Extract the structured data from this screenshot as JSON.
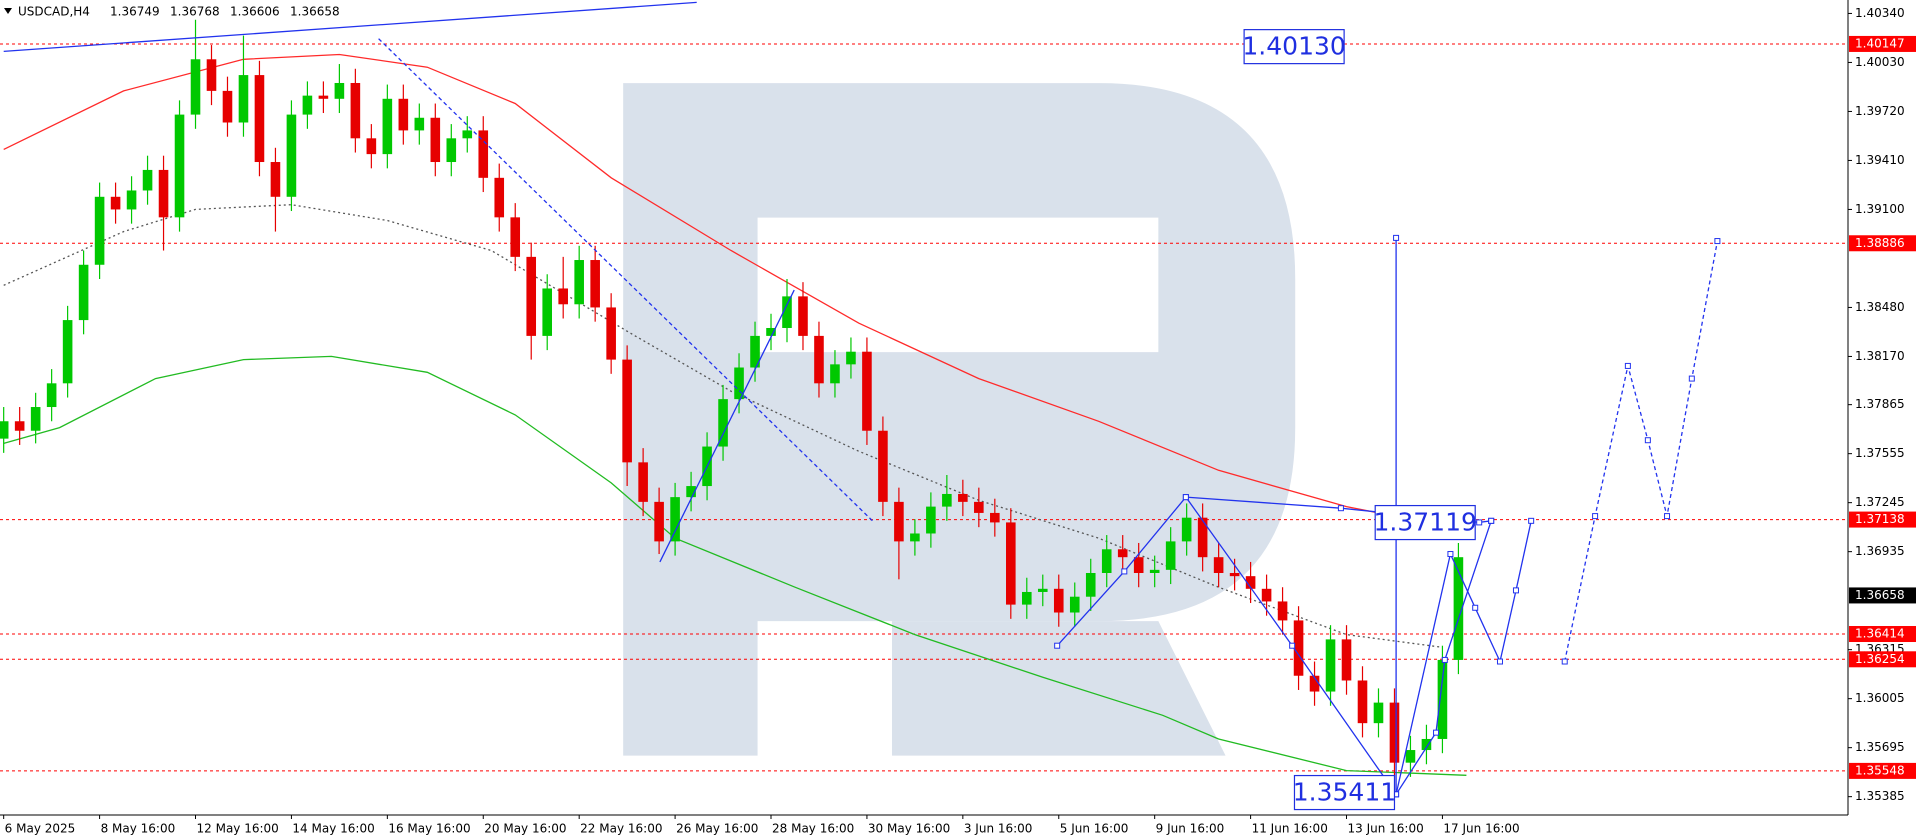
{
  "header": {
    "symbol": "USDCAD,H4",
    "values": [
      1.36749,
      1.36768,
      1.36606,
      1.36658
    ]
  },
  "chart_data": {
    "type": "candlestick",
    "x": [
      0,
      2,
      4,
      6,
      8,
      10,
      12,
      14,
      16,
      18,
      20,
      22,
      24,
      26,
      28,
      30,
      32,
      34,
      36,
      38,
      40,
      42,
      44,
      46,
      48,
      50,
      52,
      54,
      56,
      58,
      60,
      62,
      64,
      66,
      68,
      70,
      72,
      74,
      76,
      78,
      80,
      82,
      84,
      86,
      88,
      90,
      92,
      94,
      96,
      98,
      100,
      102,
      104,
      106,
      108,
      110,
      112,
      114,
      116,
      118,
      120,
      122,
      124,
      126,
      128,
      130,
      132,
      134,
      136,
      138,
      140,
      142,
      144,
      146,
      148,
      150,
      152,
      154,
      156,
      158,
      160,
      162,
      164,
      166,
      168,
      170,
      172,
      174,
      176,
      178,
      180,
      182
    ],
    "open": [
      1.3765,
      1.3776,
      1.377,
      1.3785,
      1.38,
      1.384,
      1.3875,
      1.3918,
      1.391,
      1.3922,
      1.3935,
      1.3905,
      1.397,
      1.4005,
      1.3985,
      1.3965,
      1.3995,
      1.394,
      1.3918,
      1.397,
      1.3982,
      1.398,
      1.399,
      1.3955,
      1.3945,
      1.398,
      1.396,
      1.3968,
      1.394,
      1.3955,
      1.396,
      1.393,
      1.3905,
      1.388,
      1.383,
      1.386,
      1.385,
      1.3878,
      1.3848,
      1.3815,
      1.375,
      1.3725,
      1.37,
      1.3728,
      1.3735,
      1.376,
      1.379,
      1.381,
      1.383,
      1.3835,
      1.3855,
      1.383,
      1.38,
      1.3812,
      1.382,
      1.377,
      1.3725,
      1.37,
      1.3705,
      1.3722,
      1.373,
      1.3725,
      1.3718,
      1.3712,
      1.366,
      1.3668,
      1.367,
      1.3655,
      1.3665,
      1.368,
      1.3695,
      1.369,
      1.368,
      1.3682,
      1.37,
      1.3715,
      1.369,
      1.368,
      1.3678,
      1.367,
      1.3662,
      1.365,
      1.3615,
      1.3605,
      1.3638,
      1.3612,
      1.3585,
      1.3598,
      1.356,
      1.3568,
      1.3575,
      1.3625
    ],
    "high": [
      1.3785,
      1.3785,
      1.3794,
      1.3809,
      1.3849,
      1.3884,
      1.3927,
      1.3927,
      1.3931,
      1.3944,
      1.3944,
      1.3979,
      1.403,
      1.4014,
      1.3994,
      1.402,
      1.4004,
      1.3949,
      1.3979,
      1.3991,
      1.3991,
      1.4002,
      1.3999,
      1.3964,
      1.3989,
      1.3989,
      1.3977,
      1.3977,
      1.3964,
      1.3969,
      1.3969,
      1.3939,
      1.3914,
      1.3889,
      1.3869,
      1.388,
      1.3887,
      1.3887,
      1.3857,
      1.3824,
      1.3759,
      1.3734,
      1.3737,
      1.3744,
      1.3769,
      1.3799,
      1.3819,
      1.3839,
      1.3844,
      1.3866,
      1.3864,
      1.3839,
      1.3821,
      1.3829,
      1.3829,
      1.3779,
      1.3734,
      1.3714,
      1.3731,
      1.3742,
      1.3739,
      1.3734,
      1.3727,
      1.3721,
      1.3677,
      1.3679,
      1.3679,
      1.3674,
      1.3689,
      1.3704,
      1.3704,
      1.3699,
      1.3691,
      1.3709,
      1.3724,
      1.3724,
      1.3699,
      1.3689,
      1.3687,
      1.3679,
      1.3671,
      1.3659,
      1.3624,
      1.3647,
      1.3647,
      1.3621,
      1.3607,
      1.3607,
      1.3577,
      1.3584,
      1.3634,
      1.3699
    ],
    "low": [
      1.3756,
      1.3761,
      1.3762,
      1.3776,
      1.3791,
      1.3831,
      1.3866,
      1.3901,
      1.3901,
      1.3913,
      1.3884,
      1.3896,
      1.3961,
      1.3976,
      1.3956,
      1.3956,
      1.3931,
      1.3896,
      1.3909,
      1.3961,
      1.3971,
      1.3971,
      1.3946,
      1.3936,
      1.3936,
      1.3951,
      1.3951,
      1.3931,
      1.3931,
      1.3946,
      1.3921,
      1.3896,
      1.3871,
      1.3815,
      1.3821,
      1.3841,
      1.3841,
      1.3839,
      1.3806,
      1.3735,
      1.3716,
      1.3692,
      1.3691,
      1.3719,
      1.3726,
      1.3751,
      1.3781,
      1.3801,
      1.3821,
      1.3826,
      1.3821,
      1.3791,
      1.3791,
      1.3803,
      1.3761,
      1.3716,
      1.3676,
      1.3691,
      1.3696,
      1.3713,
      1.3716,
      1.3709,
      1.3703,
      1.3651,
      1.3651,
      1.3659,
      1.3646,
      1.3646,
      1.3656,
      1.3671,
      1.3681,
      1.3671,
      1.3671,
      1.3673,
      1.3691,
      1.3681,
      1.3671,
      1.3669,
      1.3661,
      1.3653,
      1.3641,
      1.3606,
      1.3596,
      1.3596,
      1.3603,
      1.3576,
      1.3576,
      1.3541,
      1.3551,
      1.3559,
      1.3566,
      1.3616
    ],
    "close": [
      1.3776,
      1.377,
      1.3785,
      1.38,
      1.384,
      1.3875,
      1.3918,
      1.391,
      1.3922,
      1.3935,
      1.3905,
      1.397,
      1.4005,
      1.3985,
      1.3965,
      1.3995,
      1.394,
      1.3918,
      1.397,
      1.3982,
      1.398,
      1.399,
      1.3955,
      1.3945,
      1.398,
      1.396,
      1.3968,
      1.394,
      1.3955,
      1.396,
      1.393,
      1.3905,
      1.388,
      1.383,
      1.386,
      1.385,
      1.3878,
      1.3848,
      1.3815,
      1.375,
      1.3725,
      1.37,
      1.3728,
      1.3735,
      1.376,
      1.379,
      1.381,
      1.383,
      1.3835,
      1.3855,
      1.383,
      1.38,
      1.3812,
      1.382,
      1.377,
      1.3725,
      1.37,
      1.3705,
      1.3722,
      1.373,
      1.3725,
      1.3718,
      1.3712,
      1.366,
      1.3668,
      1.367,
      1.3655,
      1.3665,
      1.368,
      1.3695,
      1.369,
      1.368,
      1.3682,
      1.37,
      1.3715,
      1.369,
      1.368,
      1.3678,
      1.367,
      1.3662,
      1.365,
      1.3615,
      1.3605,
      1.3638,
      1.3612,
      1.3585,
      1.3598,
      1.356,
      1.3568,
      1.3575,
      1.3625,
      1.369
    ],
    "up_color": "#00c800",
    "down_color": "#e60000",
    "xlim": [
      -0.46,
      230.74
    ],
    "ylim": [
      1.35269,
      1.40425
    ],
    "xticks": [
      {
        "value": 0,
        "label": "6 May 2025"
      },
      {
        "value": 12,
        "label": "8 May 16:00"
      },
      {
        "value": 24,
        "label": "12 May 16:00"
      },
      {
        "value": 36,
        "label": "14 May 16:00"
      },
      {
        "value": 48,
        "label": "16 May 16:00"
      },
      {
        "value": 60,
        "label": "20 May 16:00"
      },
      {
        "value": 72,
        "label": "22 May 16:00"
      },
      {
        "value": 84,
        "label": "26 May 16:00"
      },
      {
        "value": 96,
        "label": "28 May 16:00"
      },
      {
        "value": 108,
        "label": "30 May 16:00"
      },
      {
        "value": 120,
        "label": "3 Jun 16:00"
      },
      {
        "value": 132,
        "label": "5 Jun 16:00"
      },
      {
        "value": 144,
        "label": "9 Jun 16:00"
      },
      {
        "value": 156,
        "label": "11 Jun 16:00"
      },
      {
        "value": 168,
        "label": "13 Jun 16:00"
      },
      {
        "value": 180,
        "label": "17 Jun 16:00"
      }
    ],
    "yticks": [
      {
        "value": 1.4034,
        "label": "1.40340"
      },
      {
        "value": 1.4003,
        "label": "1.40030"
      },
      {
        "value": 1.3972,
        "label": "1.39720"
      },
      {
        "value": 1.3941,
        "label": "1.39410"
      },
      {
        "value": 1.391,
        "label": "1.39100"
      },
      {
        "value": 1.3848,
        "label": "1.38480"
      },
      {
        "value": 1.3817,
        "label": "1.38170"
      },
      1.37865,
      1.37555,
      1.37245,
      1.36935,
      1.36315,
      1.36005,
      1.35695,
      1.35385
    ],
    "levels": [
      1.40147,
      1.38886,
      1.37138,
      1.36414,
      1.36254,
      1.35548
    ],
    "level_color": "#ff0000",
    "current_price": 1.36658,
    "indicators": [
      {
        "color": "#ff2a2a",
        "style": "solid",
        "x": [
          0,
          15,
          30,
          42,
          53,
          64,
          76,
          91,
          107,
          122,
          137,
          152,
          168,
          180
        ],
        "values": [
          1.3948,
          1.3985,
          1.4005,
          1.4008,
          1.4,
          1.3977,
          1.393,
          1.3884,
          1.3838,
          1.3803,
          1.3776,
          1.3745,
          1.3722,
          1.371
        ]
      },
      {
        "color": "#555555",
        "style": "dotted",
        "x": [
          0,
          15,
          24,
          36,
          48,
          61,
          70,
          79,
          91,
          107,
          122,
          137,
          152,
          168,
          180
        ],
        "values": [
          1.3862,
          1.3896,
          1.391,
          1.3913,
          1.3903,
          1.3884,
          1.3857,
          1.383,
          1.3795,
          1.3757,
          1.3726,
          1.3702,
          1.3671,
          1.3641,
          1.3633
        ]
      },
      {
        "color": "#22bb22",
        "style": "solid",
        "x": [
          0,
          7,
          19,
          30,
          41,
          53,
          64,
          76,
          84,
          99,
          114,
          130,
          145,
          152,
          168,
          183
        ],
        "values": [
          1.3762,
          1.3772,
          1.3803,
          1.3815,
          1.3817,
          1.3807,
          1.378,
          1.3737,
          1.3702,
          1.3671,
          1.3641,
          1.3614,
          1.359,
          1.3575,
          1.3555,
          1.3552
        ]
      }
    ],
    "drawings": [
      {
        "color": "#2233ee",
        "style": "solid",
        "markers": false,
        "x": [
          0,
          86.7
        ],
        "values": [
          1.401,
          1.4041
        ]
      },
      {
        "color": "#2233ee",
        "style": "dashed",
        "markers": false,
        "x": [
          46.9,
          108.9
        ],
        "values": [
          1.4018,
          1.3712
        ]
      },
      {
        "color": "#2233ee",
        "style": "solid",
        "markers": false,
        "x": [
          82.1,
          98.9
        ],
        "values": [
          1.3687,
          1.3859
        ]
      },
      {
        "color": "#2233ee",
        "style": "solid",
        "markers": true,
        "x": [
          131.8,
          140.2,
          147.9,
          161.2,
          174.2,
          181.0,
          184.1,
          187.2,
          189.2,
          191.1
        ],
        "values": [
          1.3634,
          1.3681,
          1.3728,
          1.3634,
          1.354,
          1.3692,
          1.3658,
          1.3624,
          1.3669,
          1.3713
        ]
      },
      {
        "color": "#2233ee",
        "style": "solid",
        "markers": true,
        "x": [
          147.9,
          167.3,
          184.6,
          186.1
        ],
        "values": [
          1.3728,
          1.3721,
          1.3712,
          1.3713
        ]
      },
      {
        "color": "#2233ee",
        "style": "solid",
        "markers": true,
        "x": [
          174.2,
          179.2,
          180.3,
          186.1
        ],
        "values": [
          1.354,
          1.3579,
          1.3625,
          1.3713
        ]
      },
      {
        "color": "#2233ee",
        "style": "solid",
        "markers": true,
        "x": [
          174.2,
          174.2
        ],
        "values": [
          1.3892,
          1.354
        ]
      },
      {
        "color": "#2233ee",
        "style": "dashed",
        "markers": true,
        "x": [
          195.3,
          199.1,
          203.2,
          205.7,
          208.1,
          211.2,
          214.4
        ],
        "values": [
          1.3624,
          1.3716,
          1.3811,
          1.3764,
          1.3716,
          1.3803,
          1.389
        ]
      }
    ],
    "annotations": [
      {
        "x": 167.7,
        "value": 1.4013,
        "label": "1.40130"
      },
      {
        "x": 184.1,
        "value": 1.37119
      },
      {
        "x": 174.0,
        "value": 1.35411
      }
    ]
  }
}
